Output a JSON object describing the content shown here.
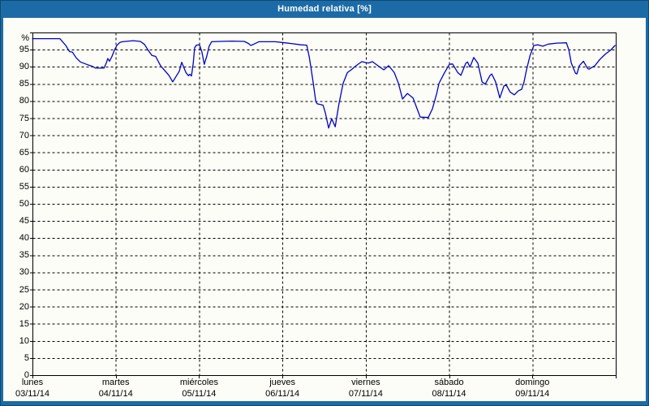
{
  "window": {
    "title": "Humedad relativa [%]"
  },
  "colors": {
    "titlebar": "#1d6ba6",
    "window_border": "#0c4a77",
    "content_background": "#fbfdf6",
    "grid": "#000000",
    "axis": "#000000",
    "line": "#0000c8",
    "text": "#000000",
    "title_text": "#ffffff"
  },
  "chart_data": {
    "type": "line",
    "title": "Humedad relativa [%]",
    "ylabel": "%",
    "ylim": [
      0,
      100
    ],
    "yticks": [
      0,
      5,
      10,
      15,
      20,
      25,
      30,
      35,
      40,
      45,
      50,
      55,
      60,
      65,
      70,
      75,
      80,
      85,
      90,
      95
    ],
    "x_range_hours": [
      0,
      168
    ],
    "grid": true,
    "legend": "none",
    "days": [
      {
        "name": "lunes",
        "date": "03/11/14"
      },
      {
        "name": "martes",
        "date": "04/11/14"
      },
      {
        "name": "miércoles",
        "date": "05/11/14"
      },
      {
        "name": "jueves",
        "date": "06/11/14"
      },
      {
        "name": "viernes",
        "date": "07/11/14"
      },
      {
        "name": "sábado",
        "date": "08/11/14"
      },
      {
        "name": "domingo",
        "date": "09/11/14"
      }
    ],
    "series": [
      {
        "name": "Humedad relativa",
        "unit": "%",
        "color": "#0000c8",
        "points": [
          [
            0,
            98.2
          ],
          [
            7.9,
            98.2
          ],
          [
            9.6,
            96.2
          ],
          [
            10.3,
            95
          ],
          [
            10.7,
            94.4
          ],
          [
            11.5,
            94.3
          ],
          [
            12.6,
            92.6
          ],
          [
            13.8,
            91.4
          ],
          [
            15.9,
            90.6
          ],
          [
            17.3,
            90.1
          ],
          [
            18.2,
            89.6
          ],
          [
            20.6,
            89.6
          ],
          [
            21.3,
            91.2
          ],
          [
            21.7,
            92.4
          ],
          [
            22.2,
            91.6
          ],
          [
            22.9,
            93
          ],
          [
            23.6,
            94.8
          ],
          [
            24.3,
            96.2
          ],
          [
            25.2,
            97.1
          ],
          [
            25.9,
            97.3
          ],
          [
            29,
            97.6
          ],
          [
            31.1,
            97.4
          ],
          [
            32.3,
            96.5
          ],
          [
            33.2,
            95
          ],
          [
            34.4,
            93.3
          ],
          [
            35.5,
            93
          ],
          [
            36.9,
            90.3
          ],
          [
            39.3,
            87.5
          ],
          [
            40.4,
            85.6
          ],
          [
            42.3,
            88.7
          ],
          [
            43,
            91.3
          ],
          [
            44.2,
            88.3
          ],
          [
            44.9,
            87.4
          ],
          [
            45.3,
            87.8
          ],
          [
            45.8,
            87.3
          ],
          [
            46.3,
            91
          ],
          [
            46.7,
            95.5
          ],
          [
            47.2,
            96.3
          ],
          [
            48.1,
            96.4
          ],
          [
            48.8,
            94.3
          ],
          [
            49.5,
            90.7
          ],
          [
            50.2,
            93
          ],
          [
            50.9,
            96
          ],
          [
            51.6,
            97.3
          ],
          [
            54,
            97.4
          ],
          [
            57.5,
            97.5
          ],
          [
            61,
            97.4
          ],
          [
            62.2,
            96.8
          ],
          [
            62.9,
            96.2
          ],
          [
            63.8,
            96.6
          ],
          [
            65.2,
            97.3
          ],
          [
            69.9,
            97.3
          ],
          [
            72.7,
            97
          ],
          [
            75,
            96.7
          ],
          [
            77.3,
            96.4
          ],
          [
            79,
            96.3
          ],
          [
            79.7,
            93
          ],
          [
            80.2,
            89.9
          ],
          [
            80.9,
            85.1
          ],
          [
            81.6,
            80
          ],
          [
            82,
            79.2
          ],
          [
            83.7,
            78.8
          ],
          [
            84.4,
            76.4
          ],
          [
            85.3,
            72.1
          ],
          [
            86.2,
            74.8
          ],
          [
            87.2,
            72.5
          ],
          [
            88.3,
            79.3
          ],
          [
            89.5,
            85.2
          ],
          [
            90.7,
            88.3
          ],
          [
            91.8,
            89.1
          ],
          [
            93.2,
            90.3
          ],
          [
            94.9,
            91.5
          ],
          [
            96,
            91.2
          ],
          [
            96.8,
            91.1
          ],
          [
            97.9,
            91.5
          ],
          [
            99.5,
            90.3
          ],
          [
            101.2,
            89.1
          ],
          [
            102.6,
            90.3
          ],
          [
            104.2,
            88.3
          ],
          [
            105.4,
            85.2
          ],
          [
            106.6,
            80.6
          ],
          [
            108,
            82.2
          ],
          [
            109.6,
            80.9
          ],
          [
            110.8,
            77.7
          ],
          [
            111.7,
            75.3
          ],
          [
            114,
            75.2
          ],
          [
            115.2,
            77.7
          ],
          [
            116.4,
            82.1
          ],
          [
            117.1,
            85.2
          ],
          [
            118.7,
            88.3
          ],
          [
            120.1,
            90.7
          ],
          [
            121,
            90.8
          ],
          [
            122.5,
            88.3
          ],
          [
            123.4,
            87.5
          ],
          [
            124.8,
            91
          ],
          [
            125.3,
            91.4
          ],
          [
            126,
            89.9
          ],
          [
            127.1,
            92.7
          ],
          [
            128.3,
            91
          ],
          [
            129.5,
            85.6
          ],
          [
            130.4,
            84.9
          ],
          [
            131.8,
            87.5
          ],
          [
            132.3,
            87.9
          ],
          [
            133.4,
            85.6
          ],
          [
            134.6,
            80.9
          ],
          [
            135.8,
            84.4
          ],
          [
            136.5,
            84.6
          ],
          [
            137.6,
            82.6
          ],
          [
            138.8,
            81.8
          ],
          [
            140,
            83
          ],
          [
            140.9,
            83.4
          ],
          [
            141.6,
            85.6
          ],
          [
            142.3,
            89.1
          ],
          [
            143.3,
            93.2
          ],
          [
            144.4,
            96.2
          ],
          [
            145.6,
            96.4
          ],
          [
            147,
            96
          ],
          [
            148.6,
            96.6
          ],
          [
            151,
            96.9
          ],
          [
            153.8,
            97
          ],
          [
            154.5,
            94.9
          ],
          [
            155.2,
            91.1
          ],
          [
            156.4,
            88.1
          ],
          [
            156.8,
            87.9
          ],
          [
            157.5,
            90.3
          ],
          [
            158.7,
            91.6
          ],
          [
            159.9,
            89.5
          ],
          [
            160.3,
            89.3
          ],
          [
            162,
            90.3
          ],
          [
            163.4,
            92.1
          ],
          [
            165,
            93.7
          ],
          [
            166.6,
            94.9
          ],
          [
            167.8,
            96.2
          ]
        ]
      }
    ]
  }
}
